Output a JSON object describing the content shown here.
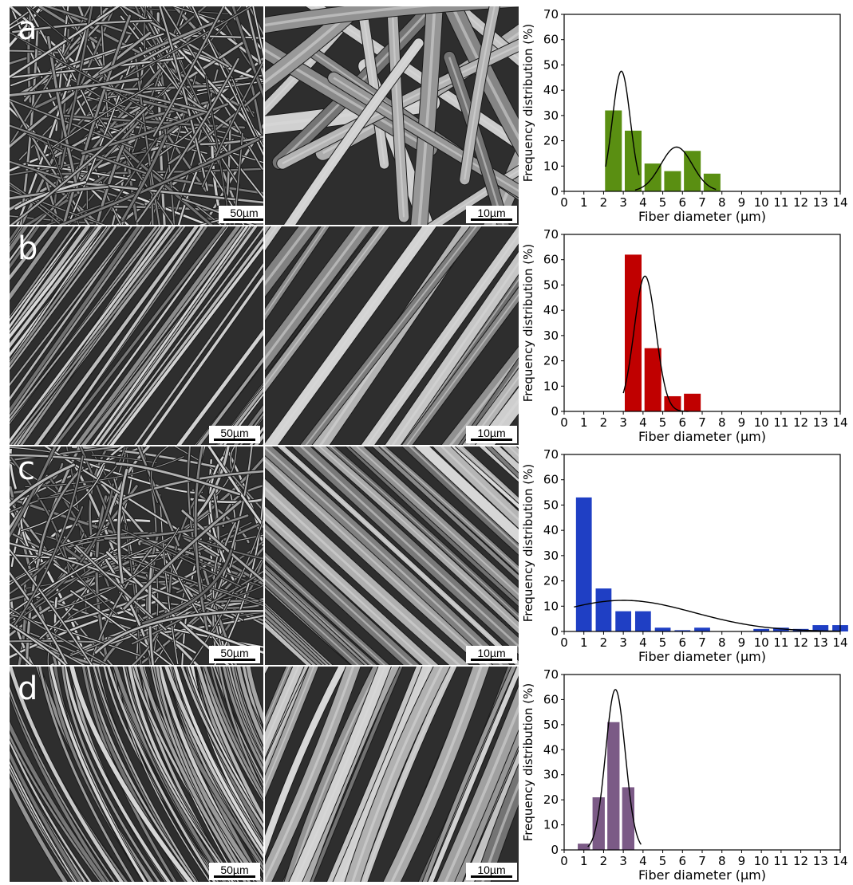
{
  "panels": [
    {
      "letter": "a",
      "scale_low": "50µm",
      "scale_high": "10µm"
    },
    {
      "letter": "b",
      "scale_low": "50µm",
      "scale_high": "10µm"
    },
    {
      "letter": "c",
      "scale_low": "50µm",
      "scale_high": "10µm"
    },
    {
      "letter": "d",
      "scale_low": "50µm",
      "scale_high": "10µm"
    }
  ],
  "chart_data": [
    {
      "type": "bar",
      "xlabel": "Fiber diameter (µm)",
      "ylabel": "Frequency distribution (%)",
      "xlim": [
        0,
        14
      ],
      "ylim": [
        0,
        70
      ],
      "xticks": [
        "0",
        "1",
        "2",
        "3",
        "4",
        "5",
        "6",
        "7",
        "8",
        "9",
        "10",
        "11",
        "12",
        "13",
        "14"
      ],
      "yticks": [
        "0",
        "10",
        "20",
        "30",
        "40",
        "50",
        "60",
        "70"
      ],
      "color": "#5a8f12",
      "bars": [
        {
          "x": 2.5,
          "value": 32
        },
        {
          "x": 3.5,
          "value": 24
        },
        {
          "x": 4.5,
          "value": 11
        },
        {
          "x": 5.5,
          "value": 8
        },
        {
          "x": 6.5,
          "value": 16
        },
        {
          "x": 7.5,
          "value": 7
        }
      ],
      "fit_curves": [
        {
          "mu": 2.9,
          "sigma": 0.45,
          "peak": 47.5,
          "xmin": 2.1,
          "xmax": 3.8
        },
        {
          "mu": 5.7,
          "sigma": 0.8,
          "peak": 17.5,
          "xmin": 3.6,
          "xmax": 7.7
        }
      ]
    },
    {
      "type": "bar",
      "xlabel": "Fiber diameter (µm)",
      "ylabel": "Frequency distribution (%)",
      "xlim": [
        0,
        14
      ],
      "ylim": [
        0,
        70
      ],
      "xticks": [
        "0",
        "1",
        "2",
        "3",
        "4",
        "5",
        "6",
        "7",
        "8",
        "9",
        "10",
        "11",
        "12",
        "13",
        "14"
      ],
      "yticks": [
        "0",
        "10",
        "20",
        "30",
        "40",
        "50",
        "60",
        "70"
      ],
      "color": "#c00000",
      "bars": [
        {
          "x": 3.5,
          "value": 62
        },
        {
          "x": 4.5,
          "value": 25
        },
        {
          "x": 5.5,
          "value": 6
        },
        {
          "x": 6.5,
          "value": 7
        }
      ],
      "fit_curves": [
        {
          "mu": 4.1,
          "sigma": 0.55,
          "peak": 53.5,
          "xmin": 3.0,
          "xmax": 6.3
        }
      ]
    },
    {
      "type": "bar",
      "xlabel": "Fiber diameter (µm)",
      "ylabel": "Frequency distribution (%)",
      "xlim": [
        0,
        14
      ],
      "ylim": [
        0,
        70
      ],
      "xticks": [
        "0",
        "1",
        "2",
        "3",
        "4",
        "5",
        "6",
        "7",
        "8",
        "9",
        "10",
        "11",
        "12",
        "13",
        "14"
      ],
      "yticks": [
        "0",
        "10",
        "20",
        "30",
        "40",
        "50",
        "60",
        "70"
      ],
      "color": "#1f3fc4",
      "bars": [
        {
          "x": 1,
          "value": 53
        },
        {
          "x": 2,
          "value": 17
        },
        {
          "x": 3,
          "value": 8
        },
        {
          "x": 4,
          "value": 8
        },
        {
          "x": 5,
          "value": 1.5
        },
        {
          "x": 6,
          "value": 0.5
        },
        {
          "x": 7,
          "value": 1.5
        },
        {
          "x": 10,
          "value": 1
        },
        {
          "x": 11,
          "value": 1.5
        },
        {
          "x": 12,
          "value": 1
        },
        {
          "x": 13,
          "value": 2.5
        },
        {
          "x": 14,
          "value": 2.5
        }
      ],
      "bar_width": 0.8,
      "fit_curves": [
        {
          "mu": 3.0,
          "sigma": 3.6,
          "peak": 12.3,
          "xmin": 0.5,
          "xmax": 14.0
        }
      ]
    },
    {
      "type": "bar",
      "xlabel": "Fiber diameter (µm)",
      "ylabel": "Frequency distribution (%)",
      "xlim": [
        0,
        14
      ],
      "ylim": [
        0,
        70
      ],
      "xticks": [
        "0",
        "1",
        "2",
        "3",
        "4",
        "5",
        "6",
        "7",
        "8",
        "9",
        "10",
        "11",
        "12",
        "13",
        "14"
      ],
      "yticks": [
        "0",
        "10",
        "20",
        "30",
        "40",
        "50",
        "60",
        "70"
      ],
      "color": "#7b5a86",
      "bars": [
        {
          "x": 1,
          "value": 2.5
        },
        {
          "x": 1.75,
          "value": 21
        },
        {
          "x": 2.5,
          "value": 51
        },
        {
          "x": 3.25,
          "value": 25
        }
      ],
      "bar_width": 0.62,
      "fit_curves": [
        {
          "mu": 2.6,
          "sigma": 0.5,
          "peak": 64,
          "xmin": 1.2,
          "xmax": 3.9
        }
      ]
    }
  ]
}
